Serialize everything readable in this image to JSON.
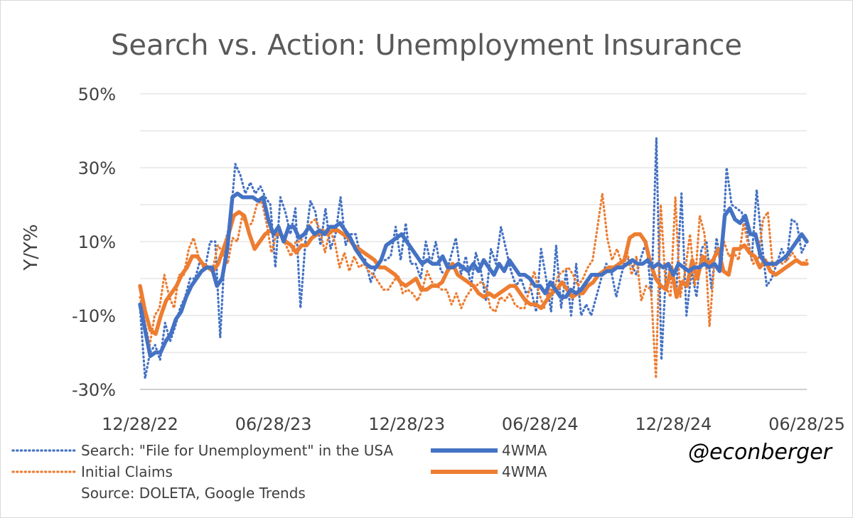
{
  "chart_data": {
    "type": "line",
    "title": "Search vs. Action: Unemployment Insurance",
    "ylabel": "Y/Y%",
    "ylim": [
      -30,
      50
    ],
    "y_ticks": [
      {
        "value": -30,
        "label": "-30%"
      },
      {
        "value": -10,
        "label": "-10%"
      },
      {
        "value": 10,
        "label": "10%"
      },
      {
        "value": 30,
        "label": "30%"
      },
      {
        "value": 50,
        "label": "50%"
      }
    ],
    "x_range": [
      0,
      130
    ],
    "x_ticks": [
      {
        "value": 0,
        "label": "12/28/22"
      },
      {
        "value": 26,
        "label": "06/28/23"
      },
      {
        "value": 52,
        "label": "12/28/23"
      },
      {
        "value": 78,
        "label": "06/28/24"
      },
      {
        "value": 104,
        "label": "12/28/24"
      },
      {
        "value": 130,
        "label": "06/28/25"
      }
    ],
    "gridlines": true,
    "series": [
      {
        "name": "Search: \"File for Unemployment\" in the USA",
        "color": "#4472C4",
        "style": "dotted",
        "values": [
          -8,
          -27,
          -20,
          -18,
          -22,
          -12,
          -17,
          -13,
          -8,
          -5,
          0,
          0,
          5,
          3,
          10,
          10,
          -16,
          10,
          15,
          31,
          28,
          23,
          26,
          23,
          25,
          22,
          20,
          3,
          22,
          18,
          12,
          19,
          -8,
          10,
          21,
          18,
          9,
          19,
          8,
          12,
          22,
          9,
          12,
          12,
          6,
          5,
          -1,
          3,
          5,
          5,
          6,
          14,
          5,
          15,
          4,
          4,
          0,
          10,
          4,
          10,
          2,
          1,
          6,
          11,
          1,
          6,
          -2,
          7,
          2,
          -6,
          8,
          4,
          14,
          8,
          2,
          -2,
          0,
          -4,
          -3,
          -9,
          8,
          0,
          -9,
          9,
          -8,
          2,
          -10,
          4,
          -10,
          -7,
          -10,
          -5,
          0,
          4,
          2,
          -5,
          1,
          6,
          4,
          1,
          6,
          10,
          -5,
          38,
          -22,
          4,
          1,
          -3,
          23,
          -10,
          2,
          -5,
          8,
          10,
          -3,
          11,
          3,
          30,
          20,
          19,
          18,
          13,
          5,
          24,
          10,
          -2,
          0,
          4,
          8,
          5,
          16,
          15,
          7,
          10
        ]
      },
      {
        "name": "4WMA",
        "color": "#4472C4",
        "style": "solid",
        "values": [
          -7,
          -14,
          -21,
          -20,
          -20,
          -17,
          -15,
          -11,
          -9,
          -5,
          -2,
          0,
          2,
          3,
          3,
          -2,
          0,
          8,
          22,
          23,
          22,
          22,
          22,
          21,
          22,
          16,
          12,
          14,
          10,
          14,
          14,
          11,
          12,
          14,
          12,
          13,
          12,
          14,
          14,
          15,
          13,
          11,
          8,
          6,
          4,
          3,
          3,
          5,
          9,
          10,
          11,
          12,
          10,
          8,
          6,
          4,
          5,
          4,
          4,
          6,
          3,
          3,
          4,
          3,
          2,
          4,
          2,
          5,
          3,
          1,
          4,
          2,
          5,
          3,
          1,
          1,
          0,
          -2,
          -2,
          -4,
          -1,
          -3,
          -5,
          -5,
          -3,
          -4,
          -3,
          -1,
          1,
          1,
          1,
          2,
          2,
          3,
          3,
          4,
          5,
          4,
          4,
          5,
          3,
          4,
          3,
          4,
          1,
          4,
          3,
          2,
          3,
          3,
          4,
          3,
          4,
          2,
          17,
          19,
          16,
          15,
          17,
          12,
          12,
          6,
          4,
          4,
          4,
          5,
          6,
          8,
          10,
          12,
          10
        ]
      },
      {
        "name": "Initial Claims",
        "color": "#ED7D31",
        "style": "dotted",
        "values": [
          -5,
          -12,
          -18,
          -10,
          -8,
          1,
          -5,
          -8,
          1,
          1,
          8,
          11,
          6,
          3,
          3,
          3,
          9,
          7,
          4,
          11,
          10,
          17,
          14,
          15,
          20,
          21,
          15,
          7,
          12,
          12,
          9,
          6,
          10,
          10,
          13,
          15,
          16,
          13,
          7,
          13,
          10,
          3,
          7,
          2,
          6,
          3,
          4,
          2,
          1,
          -1,
          -3,
          -3,
          -1,
          1,
          -4,
          -3,
          -4,
          -6,
          -3,
          2,
          -1,
          -2,
          -3,
          -3,
          -7,
          -4,
          -8,
          -5,
          -3,
          -2,
          -1,
          -2,
          -8,
          -9,
          -5,
          -6,
          -4,
          -7,
          -8,
          -8,
          -3,
          2,
          -4,
          -8,
          -3,
          -3,
          1,
          2,
          3,
          1,
          -2,
          0,
          3,
          5,
          14,
          23,
          11,
          5,
          8,
          4,
          8,
          1,
          6,
          -6,
          -2,
          -3,
          -27,
          20,
          -2,
          -5,
          22,
          -5,
          2,
          12,
          -2,
          17,
          12,
          -13,
          4,
          3,
          10,
          6,
          7,
          5,
          15,
          9,
          4,
          5,
          16,
          18,
          3,
          5,
          4,
          5,
          7,
          5,
          4,
          5
        ]
      },
      {
        "name": "4WMA",
        "color": "#ED7D31",
        "style": "solid",
        "values": [
          -2,
          -9,
          -14,
          -15,
          -10,
          -6,
          -4,
          -2,
          1,
          3,
          6,
          6,
          4,
          3,
          2,
          4,
          8,
          12,
          17,
          18,
          17,
          12,
          8,
          10,
          12,
          13,
          12,
          12,
          10,
          9,
          7,
          9,
          9,
          11,
          12,
          13,
          12,
          13,
          13,
          12,
          11,
          9,
          8,
          7,
          6,
          5,
          3,
          3,
          2,
          1,
          -1,
          -2,
          -1,
          0,
          -3,
          -3,
          -2,
          -2,
          -1,
          2,
          4,
          1,
          0,
          -1,
          -2,
          -4,
          -5,
          -4,
          -5,
          -4,
          -3,
          -2,
          -2,
          -4,
          -6,
          -7,
          -7,
          -8,
          -6,
          -4,
          -3,
          -1,
          -3,
          -5,
          -4,
          -4,
          -2,
          -1,
          1,
          2,
          3,
          3,
          4,
          5,
          11,
          12,
          12,
          10,
          4,
          0,
          -2,
          -3,
          3,
          -5,
          -1,
          -2,
          5,
          0,
          6,
          4,
          5,
          8,
          2,
          1,
          8,
          8,
          9,
          7,
          6,
          3,
          5,
          2,
          1,
          2,
          3,
          4,
          5,
          4,
          4
        ]
      }
    ],
    "legend": [
      {
        "label": "Search: \"File for Unemployment\" in the USA",
        "color": "#4472C4",
        "style": "dotted"
      },
      {
        "label": "4WMA",
        "color": "#4472C4",
        "style": "solid"
      },
      {
        "label": "Initial Claims",
        "color": "#ED7D31",
        "style": "dotted"
      },
      {
        "label": "4WMA",
        "color": "#ED7D31",
        "style": "solid"
      }
    ],
    "source": "Source: DOLETA, Google Trends",
    "handle": "@econberger"
  }
}
